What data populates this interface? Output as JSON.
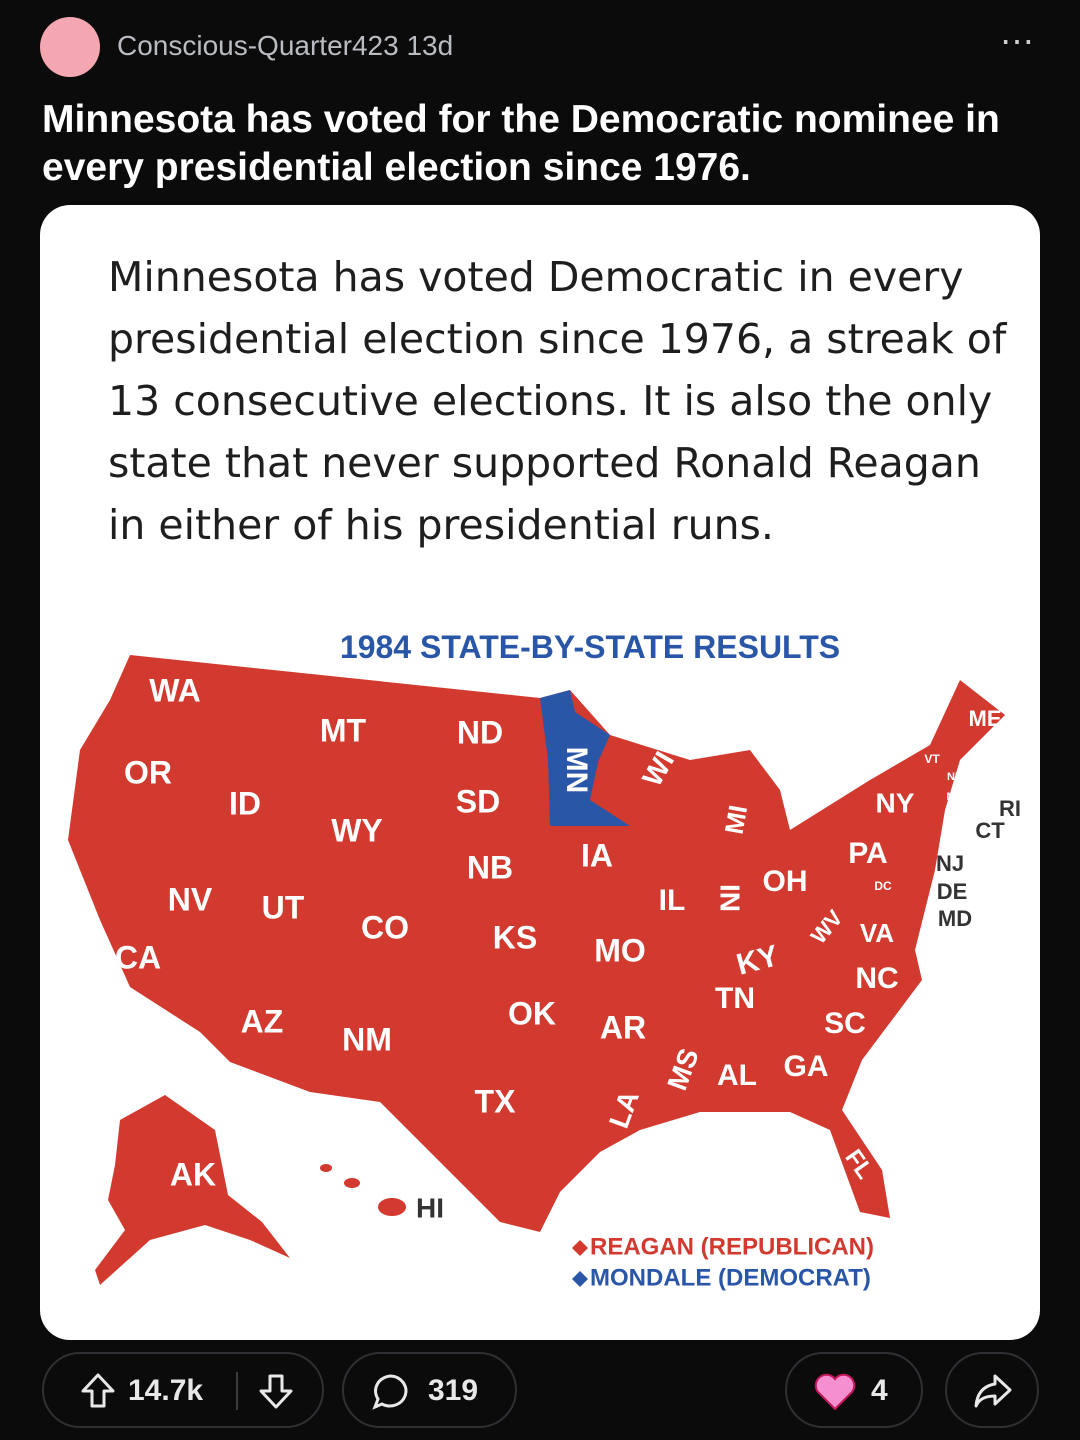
{
  "post": {
    "author": "Conscious-Quarter423",
    "age": "13d",
    "title": "Minnesota has voted for the Democratic nominee in every presidential election since 1976."
  },
  "image": {
    "caption": "Minnesota has voted Democratic in every presidential election since 1976, a streak of 13 consecutive elections. It is also the only state that never supported Ronald Reagan in either of his presidential runs.",
    "map_title": "1984 STATE-BY-STATE RESULTS",
    "state_labels": [
      "WA",
      "OR",
      "CA",
      "ID",
      "NV",
      "MT",
      "WY",
      "UT",
      "AZ",
      "CO",
      "NM",
      "ND",
      "SD",
      "NB",
      "KS",
      "OK",
      "TX",
      "MN",
      "WI",
      "IA",
      "MO",
      "AR",
      "LA",
      "IL",
      "MI",
      "IN",
      "OH",
      "KY",
      "TN",
      "MS",
      "AL",
      "GA",
      "FL",
      "SC",
      "NC",
      "VA",
      "WV",
      "PA",
      "NY",
      "NJ",
      "DE",
      "MD",
      "DC",
      "VT",
      "NH",
      "MA",
      "ME",
      "RI",
      "CT",
      "AK",
      "HI"
    ],
    "legend": [
      {
        "label": "REAGAN (REPUBLICAN)",
        "color": "#d23a2f"
      },
      {
        "label": "MONDALE (DEMOCRAT)",
        "color": "#2a56a8"
      }
    ]
  },
  "actions": {
    "upvotes": "14.7k",
    "comments": "319",
    "awards": "4"
  }
}
